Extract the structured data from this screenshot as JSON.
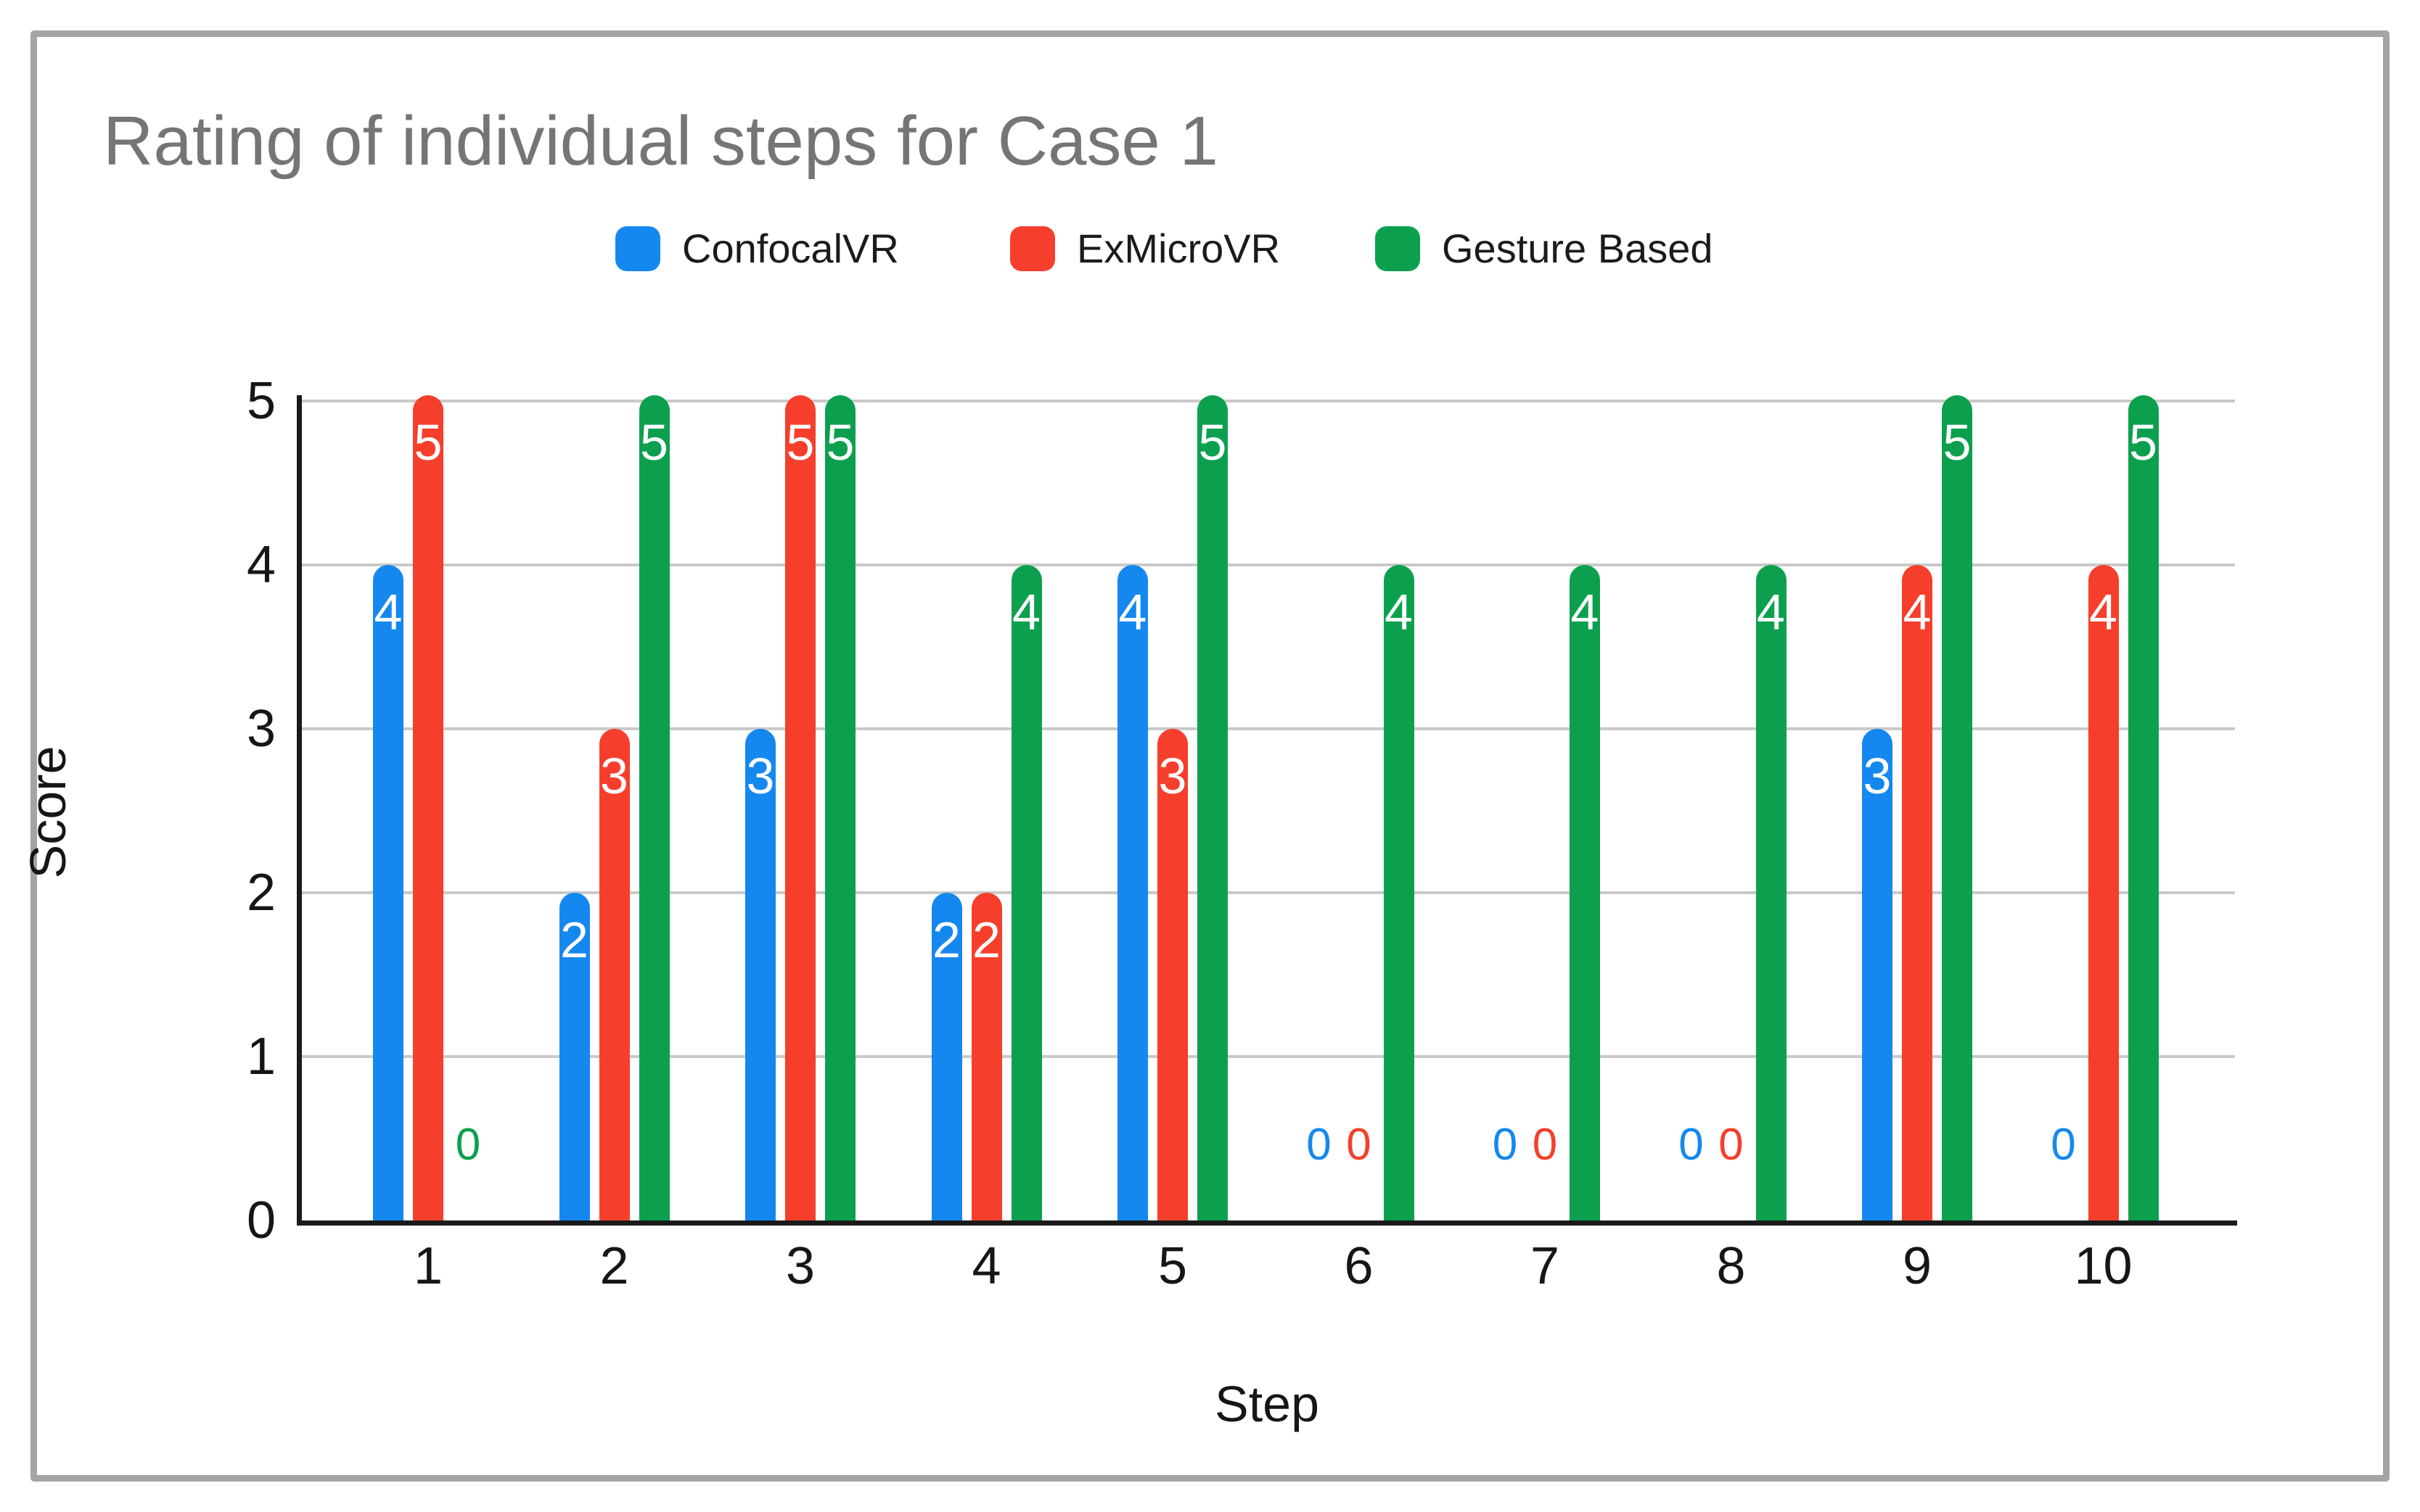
{
  "chart_data": {
    "type": "bar",
    "title": "Rating of individual steps for Case 1",
    "xlabel": "Step",
    "ylabel": "Score",
    "categories": [
      "1",
      "2",
      "3",
      "4",
      "5",
      "6",
      "7",
      "8",
      "9",
      "10"
    ],
    "series": [
      {
        "name": "ConfocalVR",
        "color": "#1588F0",
        "values": [
          4,
          2,
          3,
          2,
          4,
          0,
          0,
          0,
          3,
          0
        ]
      },
      {
        "name": "ExMicroVR",
        "color": "#F53F2C",
        "values": [
          5,
          3,
          5,
          2,
          3,
          0,
          0,
          0,
          4,
          4
        ]
      },
      {
        "name": "Gesture Based",
        "color": "#0CA04E",
        "values": [
          0,
          5,
          5,
          4,
          5,
          4,
          4,
          4,
          5,
          5
        ]
      }
    ],
    "ylim": [
      0,
      5
    ],
    "yticks": [
      0,
      1,
      2,
      3,
      4,
      5
    ],
    "grid": true,
    "legend_position": "top",
    "value_labels": "white number near top of each bar; zero values shown as series-colored 0 near baseline"
  }
}
